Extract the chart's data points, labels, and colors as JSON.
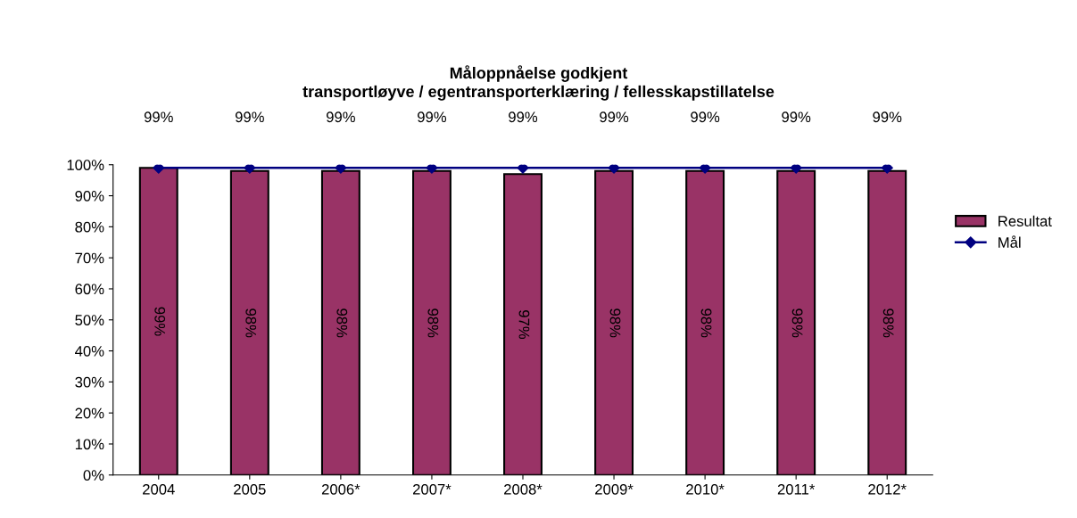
{
  "chart_data": {
    "type": "bar",
    "title": "Måloppnåelse godkjent\ntransportløyve / egentransporterklæring / fellesskapstillatelse",
    "categories": [
      "2004",
      "2005",
      "2006*",
      "2007*",
      "2008*",
      "2009*",
      "2010*",
      "2011*",
      "2012*"
    ],
    "series": [
      {
        "name": "Resultat",
        "color": "#993366",
        "values": [
          99,
          98,
          98,
          98,
          97,
          98,
          98,
          98,
          98
        ],
        "value_labels": [
          "99%",
          "98%",
          "98%",
          "98%",
          "97%",
          "98%",
          "98%",
          "98%",
          "98%"
        ]
      },
      {
        "name": "Mål",
        "type": "line",
        "color": "#000080",
        "marker": "diamond",
        "values": [
          99,
          99,
          99,
          99,
          99,
          99,
          99,
          99,
          99
        ],
        "value_labels": [
          "99%",
          "99%",
          "99%",
          "99%",
          "99%",
          "99%",
          "99%",
          "99%",
          "99%"
        ]
      }
    ],
    "ylim": [
      0,
      100
    ],
    "yticks": [
      {
        "value": 0,
        "label": "0%"
      },
      {
        "value": 10,
        "label": "10%"
      },
      {
        "value": 20,
        "label": "20%"
      },
      {
        "value": 30,
        "label": "30%"
      },
      {
        "value": 40,
        "label": "40%"
      },
      {
        "value": 50,
        "label": "50%"
      },
      {
        "value": 60,
        "label": "60%"
      },
      {
        "value": 70,
        "label": "70%"
      },
      {
        "value": 80,
        "label": "80%"
      },
      {
        "value": 90,
        "label": "90%"
      },
      {
        "value": 100,
        "label": "100%"
      }
    ],
    "grid": false,
    "legend": "right"
  }
}
